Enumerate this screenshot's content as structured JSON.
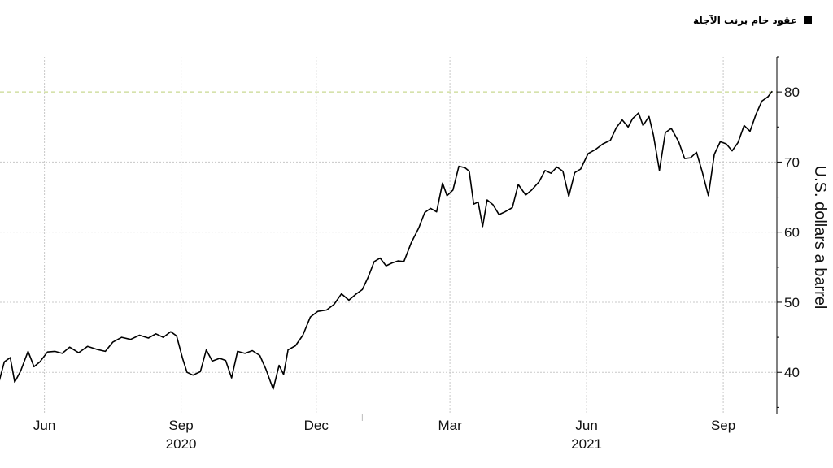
{
  "legend": {
    "label": "عقود خام برنت الآجلة",
    "swatch_color": "#000000"
  },
  "chart_data": {
    "type": "line",
    "ylabel": "U.S. dollars a barrel",
    "ylim": [
      34,
      85
    ],
    "xlim": [
      "2020-05-01",
      "2021-10-06"
    ],
    "y_axis_position": "right",
    "grid": true,
    "legend_placement": "top-right",
    "yticks": [
      40,
      50,
      60,
      70,
      80
    ],
    "xticks": [
      {
        "date": "2020-06-01",
        "label": "Jun",
        "year": ""
      },
      {
        "date": "2020-09-01",
        "label": "Sep",
        "year": "2020"
      },
      {
        "date": "2020-12-01",
        "label": "Dec",
        "year": ""
      },
      {
        "date": "2021-03-01",
        "label": "Mar",
        "year": ""
      },
      {
        "date": "2021-06-01",
        "label": "Jun",
        "year": "2021"
      },
      {
        "date": "2021-09-01",
        "label": "Sep",
        "year": ""
      }
    ],
    "reference_line": {
      "y": 80,
      "color": "#c8d890",
      "style": "dashed"
    },
    "series": [
      {
        "color": "#000000",
        "points": [
          [
            "2020-05-01",
            38.3
          ],
          [
            "2020-05-05",
            41.5
          ],
          [
            "2020-05-09",
            42.1
          ],
          [
            "2020-05-12",
            38.6
          ],
          [
            "2020-05-16",
            40.2
          ],
          [
            "2020-05-21",
            43.0
          ],
          [
            "2020-05-25",
            40.8
          ],
          [
            "2020-05-29",
            41.5
          ],
          [
            "2020-06-03",
            42.9
          ],
          [
            "2020-06-08",
            43.0
          ],
          [
            "2020-06-13",
            42.7
          ],
          [
            "2020-06-18",
            43.6
          ],
          [
            "2020-06-24",
            42.8
          ],
          [
            "2020-06-30",
            43.7
          ],
          [
            "2020-07-06",
            43.3
          ],
          [
            "2020-07-12",
            43.0
          ],
          [
            "2020-07-17",
            44.3
          ],
          [
            "2020-07-23",
            45.0
          ],
          [
            "2020-07-29",
            44.7
          ],
          [
            "2020-08-04",
            45.3
          ],
          [
            "2020-08-10",
            44.9
          ],
          [
            "2020-08-15",
            45.5
          ],
          [
            "2020-08-20",
            45.0
          ],
          [
            "2020-08-25",
            45.8
          ],
          [
            "2020-08-29",
            45.2
          ],
          [
            "2020-09-02",
            42.0
          ],
          [
            "2020-09-05",
            40.0
          ],
          [
            "2020-09-09",
            39.6
          ],
          [
            "2020-09-14",
            40.1
          ],
          [
            "2020-09-18",
            43.2
          ],
          [
            "2020-09-22",
            41.6
          ],
          [
            "2020-09-27",
            42.0
          ],
          [
            "2020-10-01",
            41.7
          ],
          [
            "2020-10-05",
            39.2
          ],
          [
            "2020-10-09",
            43.0
          ],
          [
            "2020-10-14",
            42.7
          ],
          [
            "2020-10-19",
            43.1
          ],
          [
            "2020-10-24",
            42.4
          ],
          [
            "2020-10-28",
            40.5
          ],
          [
            "2020-11-02",
            37.6
          ],
          [
            "2020-11-06",
            41.0
          ],
          [
            "2020-11-09",
            39.7
          ],
          [
            "2020-11-12",
            43.2
          ],
          [
            "2020-11-17",
            43.8
          ],
          [
            "2020-11-22",
            45.3
          ],
          [
            "2020-11-27",
            47.9
          ],
          [
            "2020-12-02",
            48.7
          ],
          [
            "2020-12-08",
            48.9
          ],
          [
            "2020-12-13",
            49.7
          ],
          [
            "2020-12-18",
            51.2
          ],
          [
            "2020-12-23",
            50.3
          ],
          [
            "2020-12-28",
            51.2
          ],
          [
            "2021-01-01",
            51.8
          ],
          [
            "2021-01-05",
            53.6
          ],
          [
            "2021-01-09",
            55.8
          ],
          [
            "2021-01-13",
            56.3
          ],
          [
            "2021-01-17",
            55.2
          ],
          [
            "2021-01-21",
            55.6
          ],
          [
            "2021-01-25",
            55.9
          ],
          [
            "2021-01-29",
            55.8
          ],
          [
            "2021-02-03",
            58.5
          ],
          [
            "2021-02-08",
            60.6
          ],
          [
            "2021-02-12",
            62.8
          ],
          [
            "2021-02-16",
            63.4
          ],
          [
            "2021-02-20",
            62.9
          ],
          [
            "2021-02-24",
            67.0
          ],
          [
            "2021-02-27",
            65.2
          ],
          [
            "2021-03-03",
            66.0
          ],
          [
            "2021-03-07",
            69.4
          ],
          [
            "2021-03-11",
            69.2
          ],
          [
            "2021-03-14",
            68.7
          ],
          [
            "2021-03-17",
            64.0
          ],
          [
            "2021-03-20",
            64.3
          ],
          [
            "2021-03-23",
            60.8
          ],
          [
            "2021-03-26",
            64.6
          ],
          [
            "2021-03-30",
            63.9
          ],
          [
            "2021-04-03",
            62.5
          ],
          [
            "2021-04-07",
            62.9
          ],
          [
            "2021-04-12",
            63.5
          ],
          [
            "2021-04-16",
            66.8
          ],
          [
            "2021-04-21",
            65.3
          ],
          [
            "2021-04-25",
            66.0
          ],
          [
            "2021-04-30",
            67.2
          ],
          [
            "2021-05-04",
            68.8
          ],
          [
            "2021-05-08",
            68.4
          ],
          [
            "2021-05-12",
            69.3
          ],
          [
            "2021-05-16",
            68.7
          ],
          [
            "2021-05-20",
            65.1
          ],
          [
            "2021-05-24",
            68.5
          ],
          [
            "2021-05-28",
            69.0
          ],
          [
            "2021-06-02",
            71.2
          ],
          [
            "2021-06-07",
            71.8
          ],
          [
            "2021-06-12",
            72.6
          ],
          [
            "2021-06-17",
            73.1
          ],
          [
            "2021-06-21",
            74.9
          ],
          [
            "2021-06-25",
            76.0
          ],
          [
            "2021-06-29",
            75.0
          ],
          [
            "2021-07-02",
            76.2
          ],
          [
            "2021-07-06",
            77.0
          ],
          [
            "2021-07-09",
            75.2
          ],
          [
            "2021-07-13",
            76.5
          ],
          [
            "2021-07-16",
            73.8
          ],
          [
            "2021-07-20",
            68.8
          ],
          [
            "2021-07-24",
            74.2
          ],
          [
            "2021-07-28",
            74.8
          ],
          [
            "2021-08-02",
            72.9
          ],
          [
            "2021-08-06",
            70.5
          ],
          [
            "2021-08-10",
            70.6
          ],
          [
            "2021-08-14",
            71.4
          ],
          [
            "2021-08-18",
            68.5
          ],
          [
            "2021-08-22",
            65.2
          ],
          [
            "2021-08-26",
            71.1
          ],
          [
            "2021-08-30",
            72.9
          ],
          [
            "2021-09-03",
            72.6
          ],
          [
            "2021-09-07",
            71.6
          ],
          [
            "2021-09-11",
            72.8
          ],
          [
            "2021-09-15",
            75.2
          ],
          [
            "2021-09-19",
            74.4
          ],
          [
            "2021-09-23",
            76.8
          ],
          [
            "2021-09-27",
            78.7
          ],
          [
            "2021-10-01",
            79.3
          ],
          [
            "2021-10-04",
            80.1
          ]
        ]
      }
    ]
  }
}
